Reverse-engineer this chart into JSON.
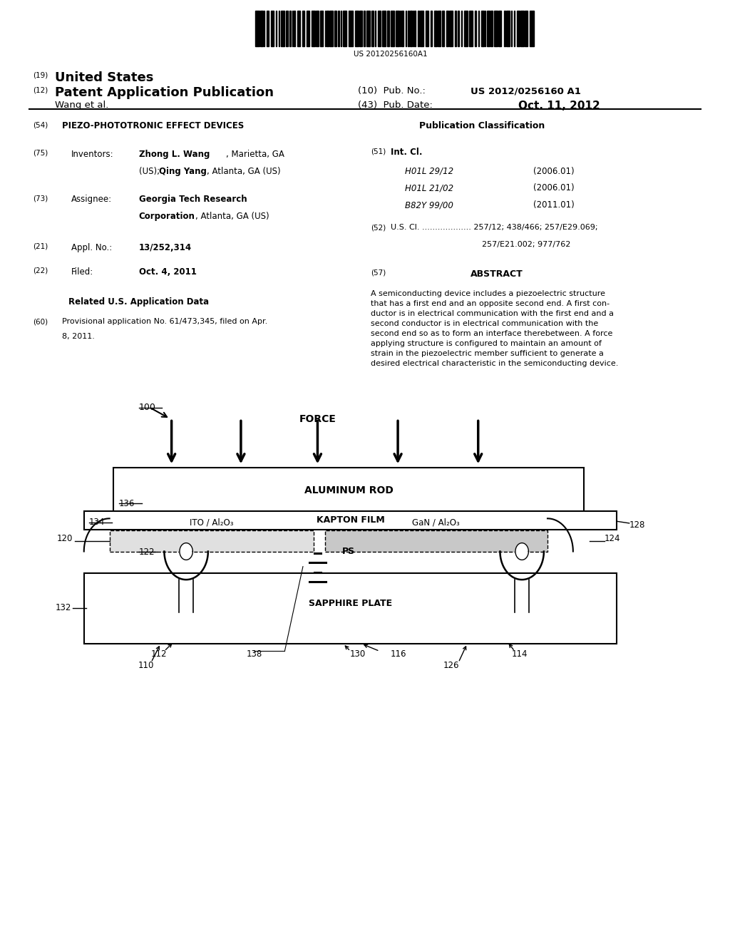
{
  "bg_color": "#ffffff",
  "barcode_text": "US 20120256160A1",
  "pub_no": "US 2012/0256160 A1",
  "pub_date": "Oct. 11, 2012",
  "abstract_text": "A semiconducting device includes a piezoelectric structure\nthat has a first end and an opposite second end. A first con-\nductor is in electrical communication with the first end and a\nsecond conductor is in electrical communication with the\nsecond end so as to form an interface therebetween. A force\napplying structure is configured to maintain an amount of\nstrain in the piezoelectric member sufficient to generate a\ndesired electrical characteristic in the semiconducting device."
}
